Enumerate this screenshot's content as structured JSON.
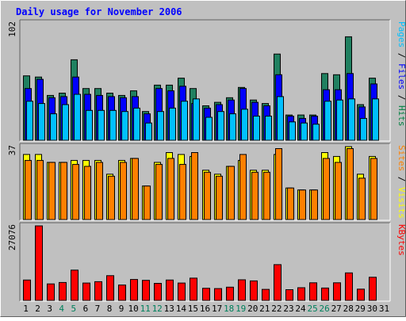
{
  "chart_data": {
    "type": "bar",
    "title": "Daily usage for November 2006",
    "categories": [
      "1",
      "2",
      "3",
      "4",
      "5",
      "6",
      "7",
      "8",
      "9",
      "10",
      "11",
      "12",
      "13",
      "14",
      "15",
      "16",
      "17",
      "18",
      "19",
      "20",
      "21",
      "22",
      "23",
      "24",
      "25",
      "26",
      "27",
      "28",
      "29",
      "30",
      "31"
    ],
    "weekend_days": [
      4,
      5,
      11,
      12,
      18,
      19,
      25,
      26
    ],
    "panels": [
      {
        "name": "top",
        "max_label": "102",
        "ylim": [
          0,
          102
        ],
        "right_label": [
          {
            "text": "Pages",
            "color": "#00c0ff"
          },
          {
            "text": " / ",
            "color": "#000000"
          },
          {
            "text": "Files",
            "color": "#0000ff"
          },
          {
            "text": " / ",
            "color": "#000000"
          },
          {
            "text": "Hits",
            "color": "#008040"
          }
        ],
        "series": [
          {
            "name": "Hits",
            "color": "#208060",
            "values": [
              56,
              55,
              39,
              41,
              70,
              45,
              45,
              41,
              39,
              43,
              25,
              48,
              48,
              54,
              45,
              30,
              33,
              37,
              46,
              35,
              32,
              75,
              22,
              22,
              22,
              58,
              57,
              90,
              31,
              54
            ]
          },
          {
            "name": "Files",
            "color": "#0000ff",
            "values": [
              45,
              53,
              37,
              38,
              55,
              40,
              39,
              38,
              37,
              38,
              23,
              45,
              43,
              47,
              32,
              28,
              31,
              35,
              45,
              33,
              30,
              57,
              21,
              19,
              21,
              44,
              44,
              58,
              29,
              49
            ]
          },
          {
            "name": "Pages",
            "color": "#00c0ff",
            "values": [
              34,
              32,
              23,
              31,
              40,
              26,
              26,
              26,
              25,
              28,
              15,
              25,
              28,
              34,
              36,
              20,
              25,
              23,
              27,
              21,
              21,
              38,
              16,
              15,
              14,
              34,
              35,
              36,
              19,
              36
            ]
          }
        ]
      },
      {
        "name": "middle",
        "max_label": "37",
        "ylim": [
          0,
          37
        ],
        "right_label": [
          {
            "text": "Sites",
            "color": "#ff8000"
          },
          {
            "text": " / ",
            "color": "#000000"
          },
          {
            "text": "Visits",
            "color": "#ffff00"
          }
        ],
        "series": [
          {
            "name": "Visits",
            "color": "#ffff00",
            "values": [
              33,
              33,
              29,
              29,
              30,
              30,
              30,
              23,
              30,
              31,
              17,
              29,
              34,
              33,
              32,
              25,
              23,
              27,
              30,
              25,
              25,
              33,
              16,
              15,
              15,
              34,
              32,
              37,
              23,
              32
            ]
          },
          {
            "name": "Sites",
            "color": "#ff8000",
            "values": [
              30,
              30,
              29,
              29,
              28,
              27,
              29,
              22,
              29,
              31,
              17,
              28,
              31,
              28,
              34,
              24,
              22,
              27,
              33,
              24,
              24,
              36,
              16,
              15,
              15,
              31,
              29,
              36,
              21,
              31
            ]
          }
        ]
      },
      {
        "name": "bottom",
        "max_label": "27076",
        "ylim": [
          0,
          27076
        ],
        "right_label": [
          {
            "text": "KBytes",
            "color": "#ff0000"
          }
        ],
        "series": [
          {
            "name": "KBytes",
            "color": "#ff0000",
            "values": [
              7400,
              27076,
              6000,
              6500,
              11000,
              6300,
              6800,
              9000,
              5600,
              7600,
              7300,
              6200,
              7400,
              6300,
              8100,
              4400,
              4300,
              4800,
              7500,
              7100,
              4000,
              13000,
              3900,
              4600,
              6400,
              4500,
              6400,
              10000,
              4100,
              8400
            ]
          }
        ]
      }
    ],
    "colors": {
      "background": "#c0c0c0",
      "frame_light": "#ffffff",
      "frame_dark": "#606060",
      "title": "#0000ff",
      "axis_text": "#000000",
      "weekend_text": "#00805c",
      "grid": "#9a9a9a"
    }
  }
}
